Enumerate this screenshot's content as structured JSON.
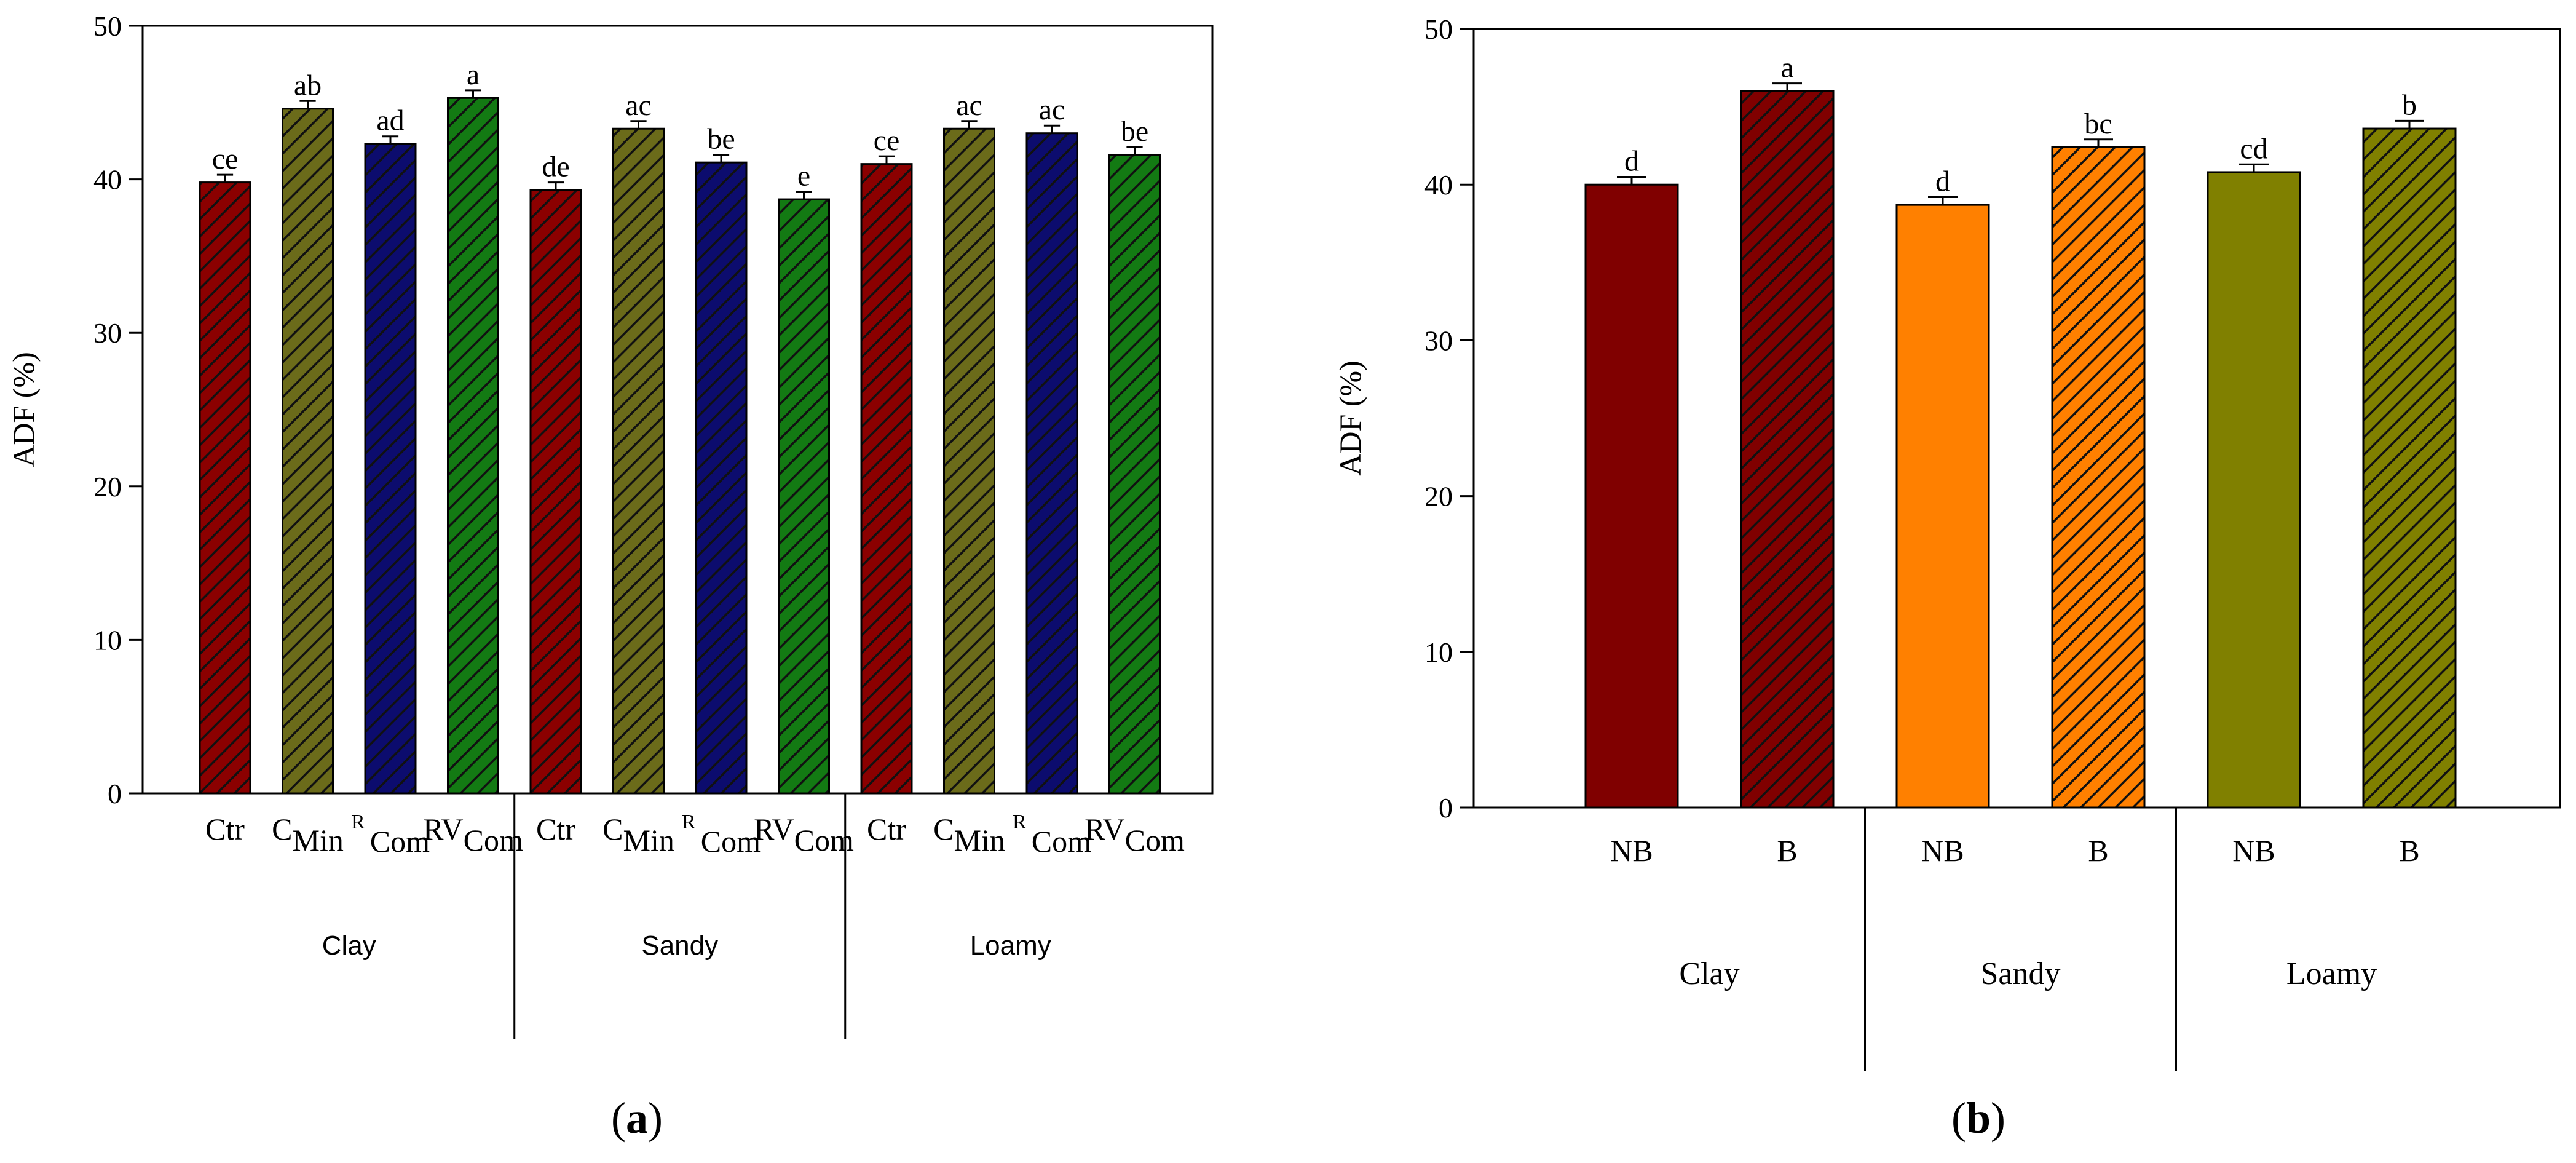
{
  "chart_data": [
    {
      "type": "bar",
      "panel_label": "a",
      "ylabel": "ADF (%)",
      "ylim": [
        0,
        50
      ],
      "yticks": [
        0,
        10,
        20,
        30,
        40,
        50
      ],
      "groups": [
        "Clay",
        "Sandy",
        "Loamy"
      ],
      "categories": [
        {
          "main": "Ctr",
          "sub": "",
          "pre": ""
        },
        {
          "main": "C",
          "sub": "Min",
          "pre": ""
        },
        {
          "main": "",
          "sub": "Com",
          "pre": "R"
        },
        {
          "main": "RV",
          "sub": "Com",
          "pre": ""
        }
      ],
      "bars": [
        {
          "group": "Clay",
          "category": "Ctr",
          "value": 39.8,
          "error": 0.5,
          "letter": "ce",
          "color": "#8b0000",
          "hatched": true
        },
        {
          "group": "Clay",
          "category": "CMin",
          "value": 44.6,
          "error": 0.5,
          "letter": "ab",
          "color": "#6b6b1a",
          "hatched": true
        },
        {
          "group": "Clay",
          "category": "RCom",
          "value": 42.3,
          "error": 0.5,
          "letter": "ad",
          "color": "#0c0c6e",
          "hatched": true
        },
        {
          "group": "Clay",
          "category": "RVCom",
          "value": 45.3,
          "error": 0.5,
          "letter": "a",
          "color": "#137a13",
          "hatched": true
        },
        {
          "group": "Sandy",
          "category": "Ctr",
          "value": 39.3,
          "error": 0.5,
          "letter": "de",
          "color": "#8b0000",
          "hatched": true
        },
        {
          "group": "Sandy",
          "category": "CMin",
          "value": 43.3,
          "error": 0.5,
          "letter": "ac",
          "color": "#6b6b1a",
          "hatched": true
        },
        {
          "group": "Sandy",
          "category": "RCom",
          "value": 41.1,
          "error": 0.5,
          "letter": "be",
          "color": "#0c0c6e",
          "hatched": true
        },
        {
          "group": "Sandy",
          "category": "RVCom",
          "value": 38.7,
          "error": 0.5,
          "letter": "e",
          "color": "#137a13",
          "hatched": true
        },
        {
          "group": "Loamy",
          "category": "Ctr",
          "value": 41.0,
          "error": 0.5,
          "letter": "ce",
          "color": "#8b0000",
          "hatched": true
        },
        {
          "group": "Loamy",
          "category": "CMin",
          "value": 43.3,
          "error": 0.5,
          "letter": "ac",
          "color": "#6b6b1a",
          "hatched": true
        },
        {
          "group": "Loamy",
          "category": "RCom",
          "value": 43.0,
          "error": 0.5,
          "letter": "ac",
          "color": "#0c0c6e",
          "hatched": true
        },
        {
          "group": "Loamy",
          "category": "RVCom",
          "value": 41.6,
          "error": 0.5,
          "letter": "be",
          "color": "#137a13",
          "hatched": true
        }
      ]
    },
    {
      "type": "bar",
      "panel_label": "b",
      "ylabel": "ADF (%)",
      "ylim": [
        0,
        50
      ],
      "yticks": [
        0,
        10,
        20,
        30,
        40,
        50
      ],
      "groups": [
        "Clay",
        "Sandy",
        "Loamy"
      ],
      "bars": [
        {
          "group": "Clay",
          "category": "NB",
          "value": 40.0,
          "error": 0.5,
          "letter": "d",
          "color": "#800000",
          "hatched": false
        },
        {
          "group": "Clay",
          "category": "B",
          "value": 46.0,
          "error": 0.5,
          "letter": "a",
          "color": "#800000",
          "hatched": true
        },
        {
          "group": "Sandy",
          "category": "NB",
          "value": 38.7,
          "error": 0.5,
          "letter": "d",
          "color": "#ff8000",
          "hatched": false
        },
        {
          "group": "Sandy",
          "category": "B",
          "value": 42.4,
          "error": 0.5,
          "letter": "bc",
          "color": "#ff8000",
          "hatched": true
        },
        {
          "group": "Loamy",
          "category": "NB",
          "value": 40.8,
          "error": 0.5,
          "letter": "cd",
          "color": "#808000",
          "hatched": false
        },
        {
          "group": "Loamy",
          "category": "B",
          "value": 43.6,
          "error": 0.5,
          "letter": "b",
          "color": "#808000",
          "hatched": true
        }
      ]
    }
  ]
}
